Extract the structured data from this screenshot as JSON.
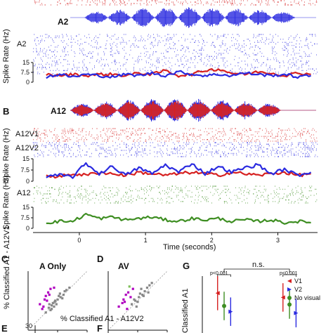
{
  "colors": {
    "red": "#d62020",
    "blue": "#2a2ae0",
    "green": "#3e8e22",
    "lightgreen": "#7fbf5a",
    "gray": "#888888",
    "magenta": "#b000c0"
  },
  "panel_labels": {
    "b": "B",
    "c": "C",
    "d": "D",
    "e": "E",
    "f": "F",
    "g": "G"
  },
  "labels": {
    "stim_a2": "A2",
    "stim_a12": "A12",
    "raster_a2": "A2",
    "raster_a12v1": "A12V1",
    "raster_a12v2": "A12V2",
    "raster_a12": "A12",
    "ylabel_rate": "Spike Rate (Hz)",
    "xlabel_time": "Time (seconds)",
    "c_title": "A Only",
    "d_title": "AV",
    "cd_ylabel": "% Classified A1 - A12V1",
    "cd_xlabel": "% Classified A1 - A12V2",
    "g_ylabel": "Classified A1",
    "g_ns": "n.s.",
    "g_p1": "p<0.001",
    "g_p2": "p<0.001",
    "e_tick": "30"
  },
  "chart_data": [
    {
      "type": "line",
      "title": "",
      "ylabel": "Spike Rate (Hz)",
      "ylim": [
        0,
        15
      ],
      "yticks": [
        0,
        7.5,
        15
      ],
      "series": [
        {
          "name": "",
          "color": "red",
          "x": [
            -0.5,
            -0.3,
            -0.1,
            0.1,
            0.3,
            0.5,
            0.7,
            0.9,
            1.1,
            1.3,
            1.5,
            1.7,
            1.9,
            2.1,
            2.3,
            2.5,
            2.7,
            2.9,
            3.1,
            3.3,
            3.5
          ],
          "values": [
            6,
            5,
            6,
            5,
            6,
            6,
            5,
            7,
            6,
            9,
            5,
            6,
            9,
            10,
            7,
            6,
            8,
            7,
            5,
            7,
            6
          ]
        },
        {
          "name": "",
          "color": "blue",
          "x": [
            -0.5,
            -0.3,
            -0.1,
            0.1,
            0.3,
            0.5,
            0.7,
            0.9,
            1.1,
            1.3,
            1.5,
            1.7,
            1.9,
            2.1,
            2.3,
            2.5,
            2.7,
            2.9,
            3.1,
            3.3,
            3.5
          ],
          "values": [
            4,
            6,
            4,
            6,
            5,
            4,
            6,
            5,
            7,
            5,
            8,
            6,
            5,
            6,
            5,
            7,
            6,
            5,
            6,
            4,
            5
          ]
        }
      ]
    },
    {
      "type": "line",
      "title": "",
      "ylabel": "Spike Rate (Hz)",
      "ylim": [
        0,
        15
      ],
      "yticks": [
        0,
        7.5,
        15
      ],
      "series": [
        {
          "name": "",
          "color": "red",
          "x": [
            -0.5,
            -0.3,
            -0.1,
            0.1,
            0.3,
            0.5,
            0.7,
            0.9,
            1.1,
            1.3,
            1.5,
            1.7,
            1.9,
            2.1,
            2.3,
            2.5,
            2.7,
            2.9,
            3.1,
            3.3,
            3.5
          ],
          "values": [
            4,
            3,
            5,
            4,
            6,
            5,
            4,
            6,
            5,
            4,
            5,
            6,
            5,
            4,
            6,
            5,
            4,
            5,
            6,
            4,
            5
          ]
        },
        {
          "name": "",
          "color": "blue",
          "x": [
            -0.5,
            -0.3,
            -0.1,
            0.1,
            0.3,
            0.5,
            0.7,
            0.9,
            1.1,
            1.3,
            1.5,
            1.7,
            1.9,
            2.1,
            2.3,
            2.5,
            2.7,
            2.9,
            3.1,
            3.3,
            3.5
          ],
          "values": [
            3,
            4,
            3,
            12,
            5,
            10,
            4,
            9,
            5,
            11,
            6,
            12,
            5,
            10,
            6,
            9,
            11,
            5,
            8,
            4,
            6
          ]
        }
      ]
    },
    {
      "type": "line",
      "title": "",
      "ylabel": "Spike Rate (Hz)",
      "xlabel": "Time (seconds)",
      "xlim": [
        -0.7,
        3.6
      ],
      "xticks": [
        0,
        1,
        2,
        3
      ],
      "ylim": [
        0,
        15
      ],
      "yticks": [
        0,
        7.5,
        15
      ],
      "series": [
        {
          "name": "",
          "color": "green",
          "x": [
            -0.5,
            -0.3,
            -0.1,
            0.1,
            0.3,
            0.5,
            0.7,
            0.9,
            1.1,
            1.3,
            1.5,
            1.7,
            1.9,
            2.1,
            2.3,
            2.5,
            2.7,
            2.9,
            3.1,
            3.3,
            3.5
          ],
          "values": [
            4,
            5,
            5,
            10,
            7,
            8,
            6,
            7,
            8,
            6,
            5,
            7,
            6,
            7,
            5,
            6,
            5,
            6,
            4,
            5,
            4
          ]
        }
      ]
    },
    {
      "type": "scatter",
      "title": "A Only",
      "xlabel": "% Classified A1 - A12V2",
      "ylabel": "% Classified A1 - A12V1",
      "xlim": [
        0,
        100
      ],
      "ylim": [
        0,
        100
      ],
      "xticks": [
        0,
        50,
        100
      ],
      "series": [
        {
          "name": "",
          "color": "gray",
          "x": [
            30,
            35,
            40,
            45,
            50,
            55,
            60,
            38,
            42,
            48,
            52,
            58,
            62,
            44,
            36,
            54,
            65,
            70,
            46,
            40
          ],
          "y": [
            30,
            38,
            42,
            48,
            52,
            56,
            60,
            34,
            46,
            44,
            58,
            54,
            66,
            40,
            44,
            62,
            68,
            72,
            50,
            36
          ]
        },
        {
          "name": "",
          "color": "magenta",
          "x": [
            20,
            28,
            34,
            26,
            38,
            30,
            44,
            32,
            24,
            36
          ],
          "y": [
            44,
            52,
            64,
            40,
            70,
            58,
            72,
            50,
            36,
            60
          ]
        }
      ]
    },
    {
      "type": "scatter",
      "title": "AV",
      "xlim": [
        0,
        100
      ],
      "ylim": [
        0,
        100
      ],
      "xticks": [
        0,
        50,
        100
      ],
      "series": [
        {
          "name": "",
          "color": "gray",
          "x": [
            40,
            46,
            52,
            58,
            62,
            66,
            48,
            54,
            70,
            44,
            60,
            74,
            50,
            56,
            68
          ],
          "y": [
            44,
            50,
            56,
            60,
            66,
            72,
            40,
            62,
            76,
            52,
            58,
            80,
            48,
            70,
            64
          ]
        },
        {
          "name": "",
          "color": "magenta",
          "x": [
            18,
            26,
            30,
            34,
            38,
            24,
            42,
            32,
            28
          ],
          "y": [
            40,
            52,
            60,
            64,
            56,
            46,
            70,
            36,
            48
          ]
        },
        {
          "name": "",
          "color": "lightgreen",
          "x": [
            36
          ],
          "y": [
            74
          ]
        }
      ]
    },
    {
      "type": "scatter",
      "title": "",
      "ylabel": "Classified A1",
      "legend": "top-right",
      "series": [
        {
          "name": "V1",
          "color": "red",
          "x": [
            1,
            4
          ],
          "y": [
            58,
            55
          ],
          "err": [
            12,
            10
          ]
        },
        {
          "name": "V2",
          "color": "blue",
          "x": [
            1.6,
            4.6
          ],
          "y": [
            45,
            44
          ],
          "err": [
            10,
            10
          ]
        },
        {
          "name": "No visual",
          "color": "green",
          "x": [
            1.3,
            4.3
          ],
          "y": [
            49,
            50
          ],
          "err": [
            10,
            10
          ]
        }
      ]
    }
  ]
}
